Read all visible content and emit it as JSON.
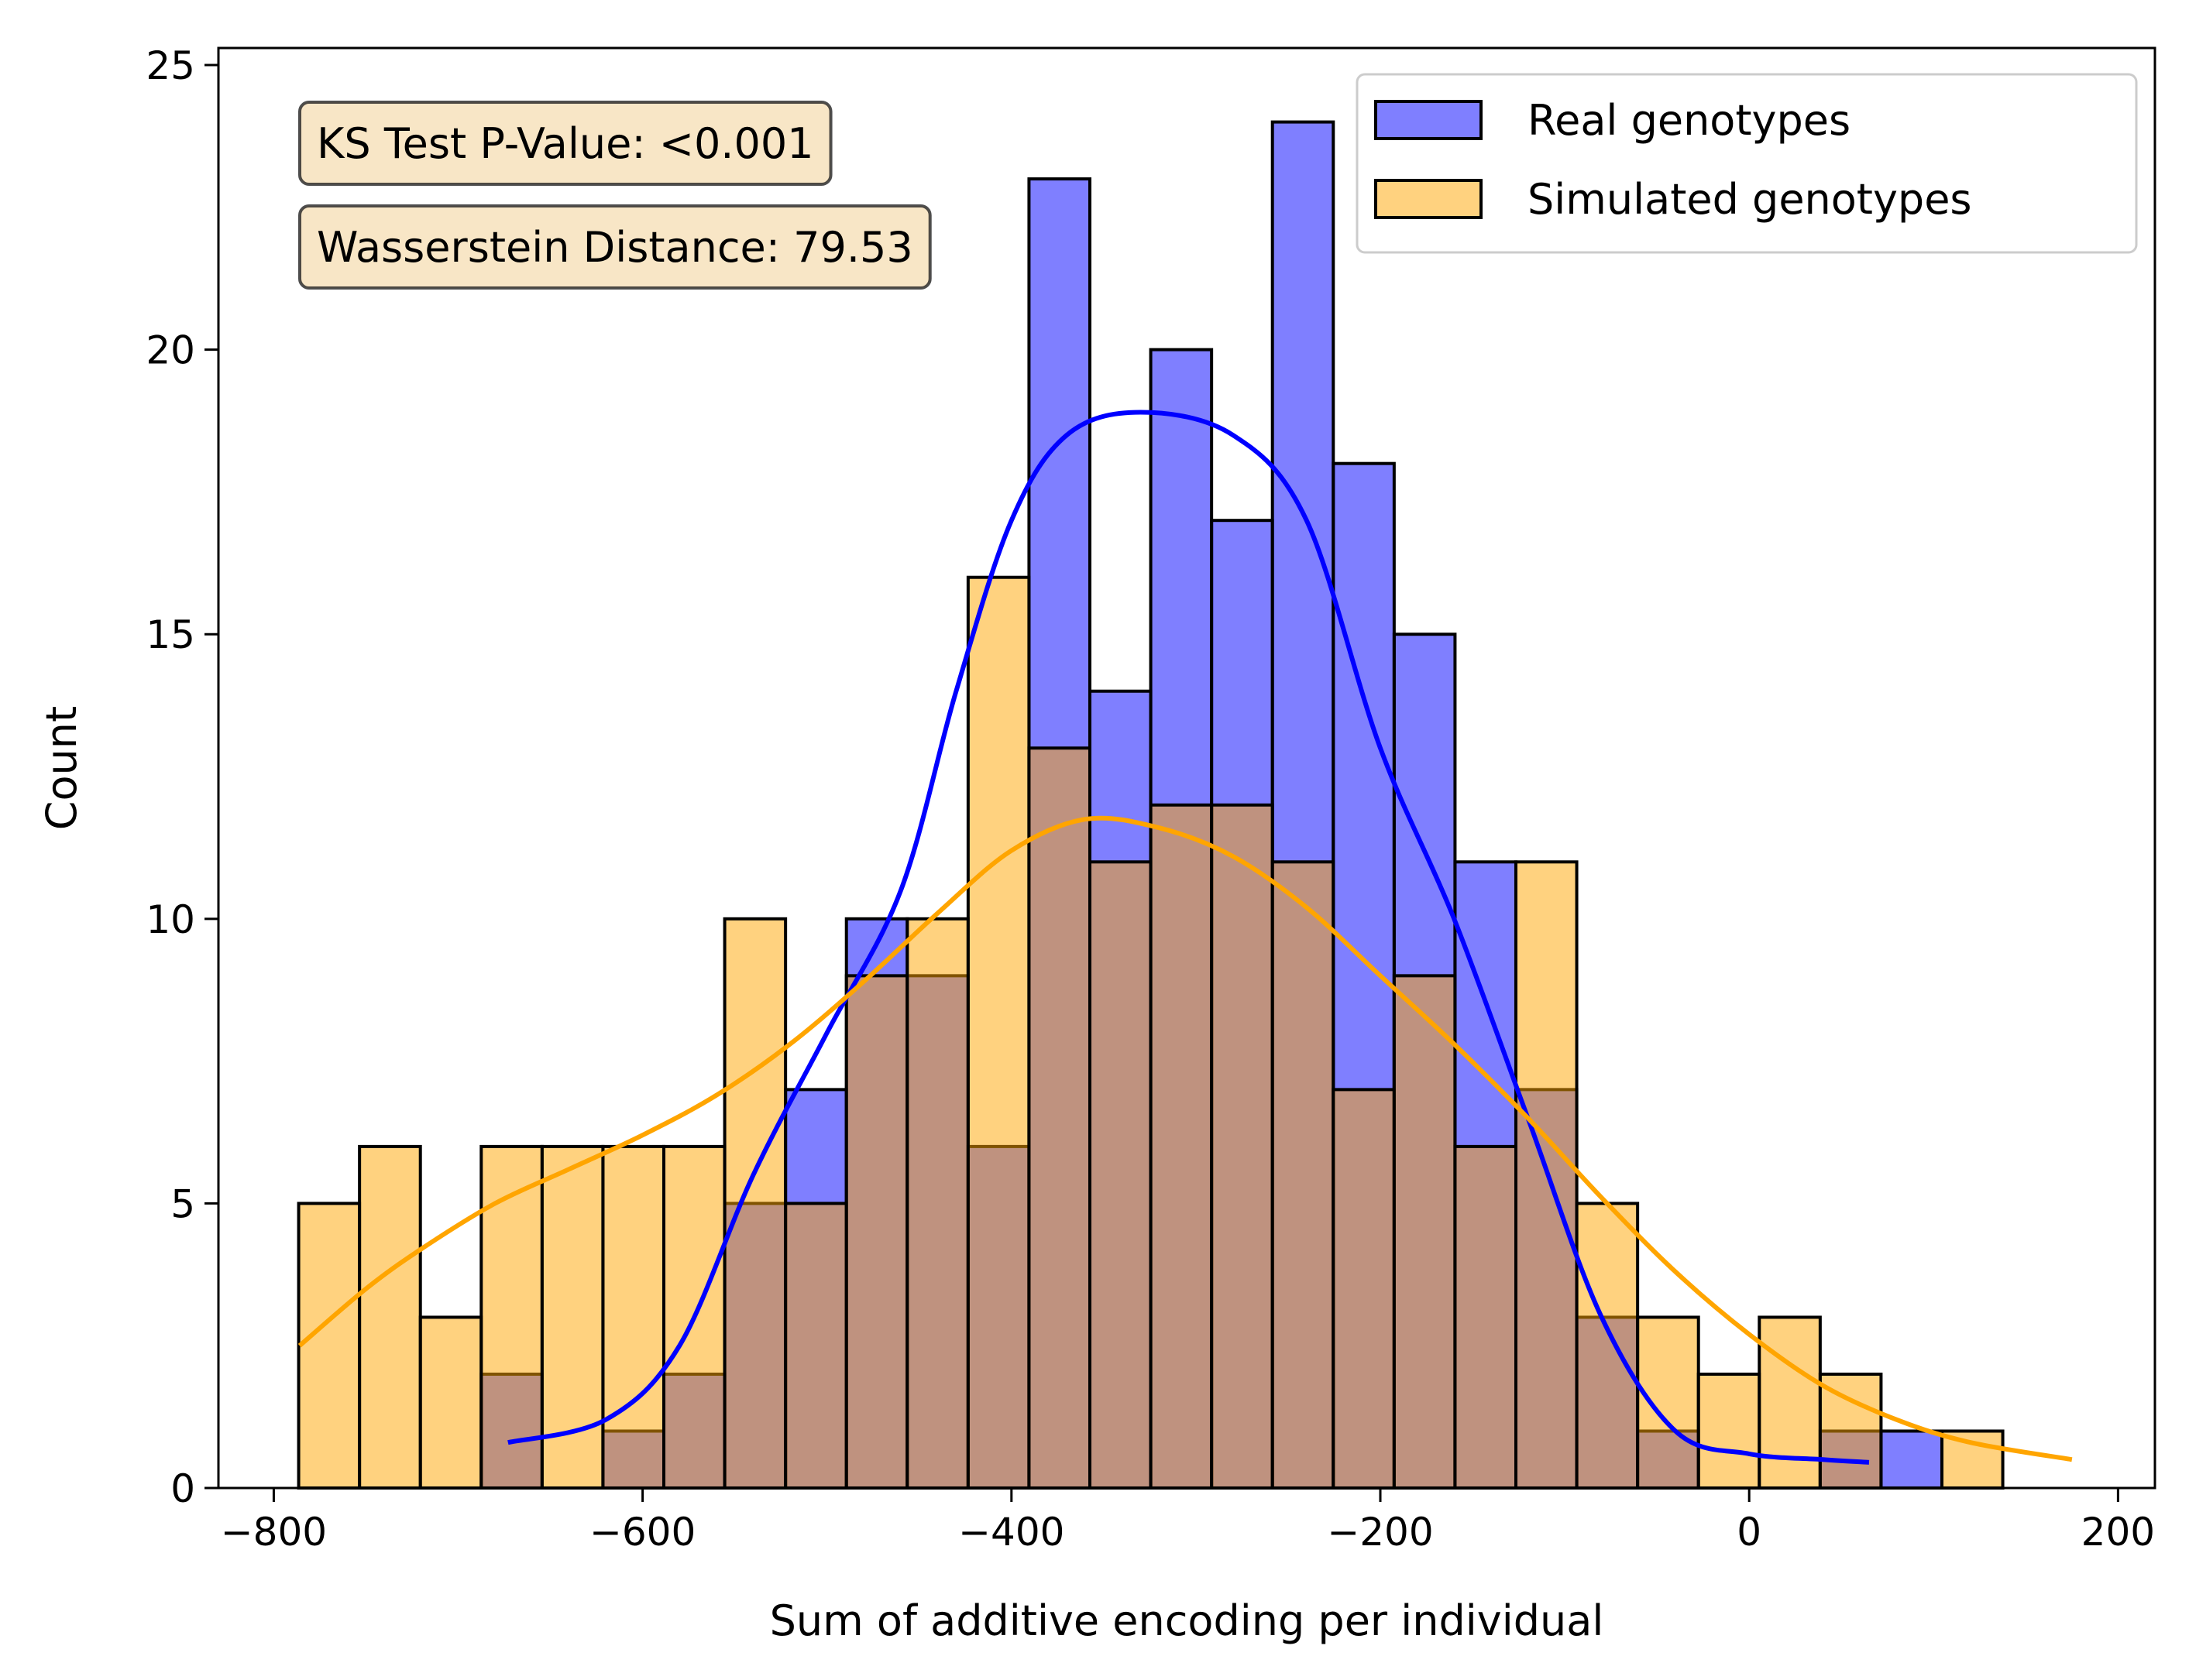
{
  "chart_data": {
    "type": "bar",
    "xlabel": "Sum of additive encoding per individual",
    "ylabel": "Count",
    "xlim": [
      -830,
      220
    ],
    "ylim": [
      0,
      25.3
    ],
    "xticks": [
      -800,
      -600,
      -400,
      -200,
      0,
      200
    ],
    "xtick_labels": [
      "−800",
      "−600",
      "−400",
      "−200",
      "0",
      "200"
    ],
    "yticks": [
      0,
      5,
      10,
      15,
      20,
      25
    ],
    "ytick_labels": [
      "0",
      "5",
      "10",
      "15",
      "20",
      "25"
    ],
    "grid": false,
    "legend_position": "top-right",
    "bin_start": -786.5,
    "bin_width": 33,
    "series": [
      {
        "name": "Real genotypes",
        "color": "#0000ff",
        "kde_color": "#0000ff",
        "counts": [
          0,
          0,
          0,
          2,
          0,
          1,
          2,
          5,
          7,
          10,
          9,
          6,
          23,
          14,
          20,
          17,
          24,
          18,
          15,
          11,
          7,
          3,
          1,
          0,
          0,
          1,
          1,
          0,
          0,
          0
        ],
        "kde": [
          [
            -673,
            0.8
          ],
          [
            -620,
            1.2
          ],
          [
            -580,
            2.5
          ],
          [
            -540,
            5.5
          ],
          [
            -500,
            8.0
          ],
          [
            -460,
            10.5
          ],
          [
            -430,
            14.0
          ],
          [
            -400,
            17.0
          ],
          [
            -370,
            18.5
          ],
          [
            -330,
            18.9
          ],
          [
            -280,
            18.5
          ],
          [
            -240,
            17.0
          ],
          [
            -200,
            13.0
          ],
          [
            -160,
            10.0
          ],
          [
            -120,
            6.5
          ],
          [
            -80,
            3.0
          ],
          [
            -40,
            1.0
          ],
          [
            0,
            0.6
          ],
          [
            40,
            0.5
          ],
          [
            65,
            0.45
          ]
        ]
      },
      {
        "name": "Simulated genotypes",
        "color": "#ffa500",
        "kde_color": "#ffa500",
        "counts": [
          5,
          6,
          3,
          6,
          6,
          6,
          6,
          10,
          5,
          9,
          10,
          16,
          13,
          11,
          12,
          12,
          11,
          7,
          9,
          6,
          11,
          5,
          3,
          2,
          3,
          2,
          0,
          1,
          0,
          0
        ],
        "kde": [
          [
            -786,
            2.5
          ],
          [
            -750,
            3.5
          ],
          [
            -720,
            4.2
          ],
          [
            -680,
            5.0
          ],
          [
            -640,
            5.6
          ],
          [
            -600,
            6.2
          ],
          [
            -560,
            6.9
          ],
          [
            -520,
            7.8
          ],
          [
            -480,
            8.9
          ],
          [
            -440,
            10.1
          ],
          [
            -400,
            11.2
          ],
          [
            -360,
            11.75
          ],
          [
            -320,
            11.6
          ],
          [
            -280,
            11.1
          ],
          [
            -240,
            10.2
          ],
          [
            -200,
            9.0
          ],
          [
            -160,
            7.8
          ],
          [
            -120,
            6.5
          ],
          [
            -80,
            5.1
          ],
          [
            -40,
            3.8
          ],
          [
            0,
            2.7
          ],
          [
            40,
            1.8
          ],
          [
            80,
            1.2
          ],
          [
            120,
            0.8
          ],
          [
            175,
            0.5
          ]
        ]
      }
    ],
    "annotations": [
      "KS Test P-Value: <0.001",
      "Wasserstein Distance: 79.53"
    ]
  }
}
